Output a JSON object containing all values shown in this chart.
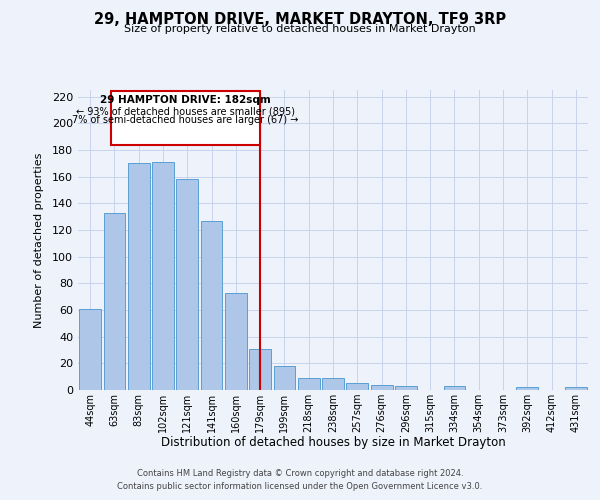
{
  "title": "29, HAMPTON DRIVE, MARKET DRAYTON, TF9 3RP",
  "subtitle": "Size of property relative to detached houses in Market Drayton",
  "xlabel": "Distribution of detached houses by size in Market Drayton",
  "ylabel": "Number of detached properties",
  "bin_labels": [
    "44sqm",
    "63sqm",
    "83sqm",
    "102sqm",
    "121sqm",
    "141sqm",
    "160sqm",
    "179sqm",
    "199sqm",
    "218sqm",
    "238sqm",
    "257sqm",
    "276sqm",
    "296sqm",
    "315sqm",
    "334sqm",
    "354sqm",
    "373sqm",
    "392sqm",
    "412sqm",
    "431sqm"
  ],
  "bar_heights": [
    61,
    133,
    170,
    171,
    158,
    127,
    73,
    31,
    18,
    9,
    9,
    5,
    4,
    3,
    0,
    3,
    0,
    0,
    2,
    0,
    2
  ],
  "bar_color": "#aec6e8",
  "bar_edge_color": "#5a9fd4",
  "background_color": "#eef2fb",
  "grid_color": "#c8d4ec",
  "marker_label_line1": "29 HAMPTON DRIVE: 182sqm",
  "marker_label_line2": "← 93% of detached houses are smaller (895)",
  "marker_label_line3": "7% of semi-detached houses are larger (67) →",
  "marker_color": "#cc0000",
  "annotation_box_edge_color": "#cc0000",
  "ylim": [
    0,
    225
  ],
  "yticks": [
    0,
    20,
    40,
    60,
    80,
    100,
    120,
    140,
    160,
    180,
    200,
    220
  ],
  "footnote_line1": "Contains HM Land Registry data © Crown copyright and database right 2024.",
  "footnote_line2": "Contains public sector information licensed under the Open Government Licence v3.0."
}
